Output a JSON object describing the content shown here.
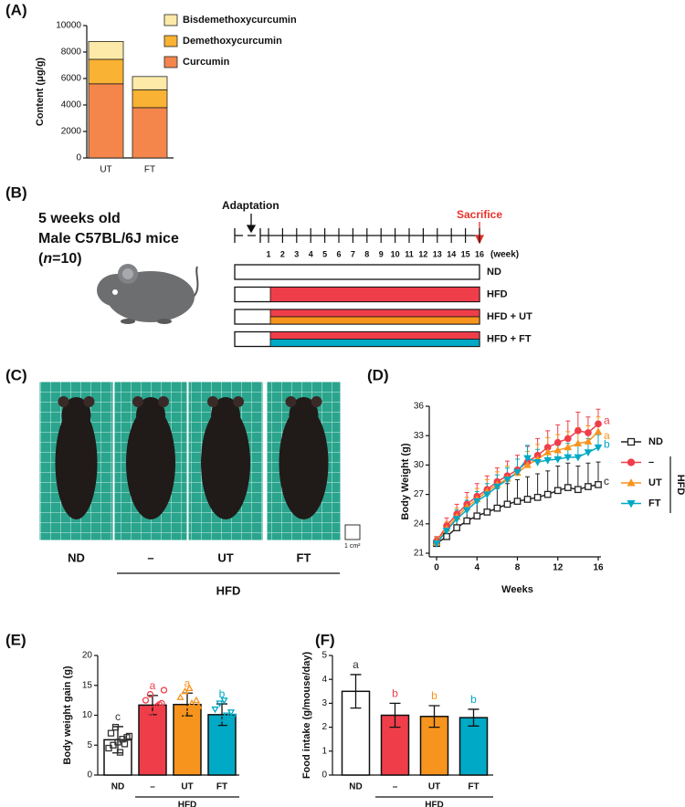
{
  "panel_labels": [
    "(A)",
    "(B)",
    "(C)",
    "(D)",
    "(E)",
    "(F)"
  ],
  "chart_data": [
    {
      "type": "stacked_bar",
      "ylabel": "Content (μg/g)",
      "categories": [
        "UT",
        "FT"
      ],
      "series": [
        {
          "name": "Curcumin",
          "color": "#f4864b",
          "values": [
            5600,
            3800
          ]
        },
        {
          "name": "Demethoxycurcumin",
          "color": "#f9b233",
          "values": [
            1850,
            1350
          ]
        },
        {
          "name": "Bisdemethoxycurcumin",
          "color": "#fdeaa8",
          "values": [
            1350,
            1000
          ]
        }
      ],
      "ylim": [
        0,
        10000
      ],
      "yticks": [
        0,
        2000,
        4000,
        6000,
        8000,
        10000
      ]
    },
    {
      "type": "line",
      "xlabel": "Weeks",
      "ylabel": "Body Weight (g)",
      "x": [
        0,
        1,
        2,
        3,
        4,
        5,
        6,
        7,
        8,
        9,
        10,
        11,
        12,
        13,
        14,
        15,
        16
      ],
      "xlim": [
        0,
        16
      ],
      "xticks": [
        0,
        4,
        8,
        12,
        16
      ],
      "ylim": [
        21,
        36
      ],
      "yticks": [
        21,
        24,
        27,
        30,
        33,
        36
      ],
      "legend_group": "HFD",
      "series": [
        {
          "name": "ND",
          "color": "#222222",
          "marker": "square",
          "letter": "c",
          "values": [
            22,
            22.7,
            23.6,
            24.3,
            24.8,
            25.2,
            25.6,
            26,
            26.3,
            26.5,
            26.7,
            27,
            27.4,
            27.7,
            27.5,
            27.8,
            28
          ],
          "errors": [
            0.6,
            0.8,
            1,
            1.3,
            1.6,
            1.8,
            2,
            2.1,
            2.2,
            2.3,
            2.4,
            2.4,
            2.5,
            2.5,
            2.4,
            2.4,
            2.3
          ]
        },
        {
          "name": "–",
          "color": "#ef3e4a",
          "marker": "circle",
          "letter": "a",
          "values": [
            22.2,
            23.8,
            25,
            26,
            26.8,
            27.5,
            28.3,
            28.9,
            29.5,
            30.3,
            31,
            31.8,
            32.3,
            32.7,
            33.5,
            33.3,
            34.2
          ],
          "errors": [
            0.5,
            0.8,
            1,
            1.2,
            1.3,
            1.4,
            1.4,
            1.5,
            1.5,
            1.6,
            1.7,
            1.7,
            1.8,
            1.8,
            1.9,
            1.6,
            1.5
          ]
        },
        {
          "name": "UT",
          "color": "#f7941d",
          "marker": "triangle",
          "letter": "a",
          "values": [
            22.1,
            23.5,
            24.7,
            25.7,
            26.5,
            27.3,
            28,
            28.6,
            29.2,
            30,
            30.6,
            31.3,
            31.5,
            31.8,
            32.2,
            32.4,
            33.4
          ],
          "errors": [
            0.5,
            0.7,
            0.9,
            1,
            1.1,
            1.2,
            1.3,
            1.3,
            1.4,
            1.4,
            1.5,
            1.5,
            1.6,
            1.6,
            1.6,
            1.6,
            1.5
          ]
        },
        {
          "name": "FT",
          "color": "#00a9c5",
          "marker": "triangle-down",
          "letter": "b",
          "values": [
            22,
            23.3,
            24.5,
            25.4,
            26.3,
            27,
            27.8,
            28.5,
            29.3,
            30.7,
            30.3,
            30.5,
            30.6,
            30.8,
            30.8,
            31.3,
            31.8
          ],
          "errors": [
            0.5,
            0.7,
            0.9,
            1,
            1,
            1.1,
            1.2,
            1.2,
            1.3,
            1.3,
            1.3,
            1.4,
            1.4,
            1.4,
            1.4,
            1.4,
            1.3
          ]
        }
      ]
    },
    {
      "type": "bar",
      "ylabel": "Body weight gain (g)",
      "categories": [
        "ND",
        "–",
        "UT",
        "FT"
      ],
      "group_label": "HFD",
      "colors": [
        "#ffffff",
        "#ef3e4a",
        "#f7941d",
        "#00a9c5"
      ],
      "markers": [
        "square",
        "circle",
        "triangle",
        "triangle-down"
      ],
      "values": [
        5.9,
        11.7,
        11.8,
        10.1
      ],
      "errors": [
        2.2,
        1.6,
        1.9,
        1.8
      ],
      "letters": [
        "c",
        "a",
        "a",
        "b"
      ],
      "points": [
        [
          4.5,
          5,
          5.5,
          6,
          6.3,
          7,
          8,
          3.8,
          5.2,
          6.5
        ],
        [
          9.8,
          10.5,
          11,
          11.5,
          12,
          12.5,
          13.5,
          10.2,
          11.8,
          14.2
        ],
        [
          9,
          10,
          11,
          12,
          12.5,
          13,
          14,
          14.5,
          10.5,
          11.5
        ],
        [
          8,
          8.7,
          9.5,
          10,
          10.5,
          11,
          12,
          12.5,
          9,
          9.8
        ]
      ],
      "ylim": [
        0,
        20
      ],
      "yticks": [
        0,
        5,
        10,
        15,
        20
      ]
    },
    {
      "type": "bar",
      "ylabel": "Food intake (g/mouse/day)",
      "categories": [
        "ND",
        "–",
        "UT",
        "FT"
      ],
      "group_label": "HFD",
      "colors": [
        "#ffffff",
        "#ef3e4a",
        "#f7941d",
        "#00a9c5"
      ],
      "values": [
        3.5,
        2.5,
        2.45,
        2.4
      ],
      "errors": [
        0.7,
        0.5,
        0.45,
        0.35
      ],
      "letters": [
        "a",
        "b",
        "b",
        "b"
      ],
      "ylim": [
        0,
        5
      ],
      "yticks": [
        0,
        1,
        2,
        3,
        4,
        5
      ]
    }
  ],
  "timeline": {
    "mouse_info": [
      "5 weeks old",
      "Male C57BL/6J mice"
    ],
    "n_label": [
      "(",
      "n",
      "=10)"
    ],
    "adaptation": "Adaptation",
    "sacrifice": "Sacrifice",
    "unit": "(week)",
    "weeks": [
      1,
      2,
      3,
      4,
      5,
      6,
      7,
      8,
      9,
      10,
      11,
      12,
      13,
      14,
      15,
      16
    ],
    "groups": [
      {
        "name": "ND",
        "colors": []
      },
      {
        "name": "HFD",
        "colors": [
          "#ef3e4a"
        ]
      },
      {
        "name": "HFD + UT",
        "colors": [
          "#ef3e4a",
          "#f7941d"
        ]
      },
      {
        "name": "HFD + FT",
        "colors": [
          "#ef3e4a",
          "#00a9c5"
        ]
      }
    ]
  },
  "photo_panel": {
    "labels": [
      "ND",
      "–",
      "UT",
      "FT"
    ],
    "group": "HFD",
    "scale": "1 cm²"
  }
}
